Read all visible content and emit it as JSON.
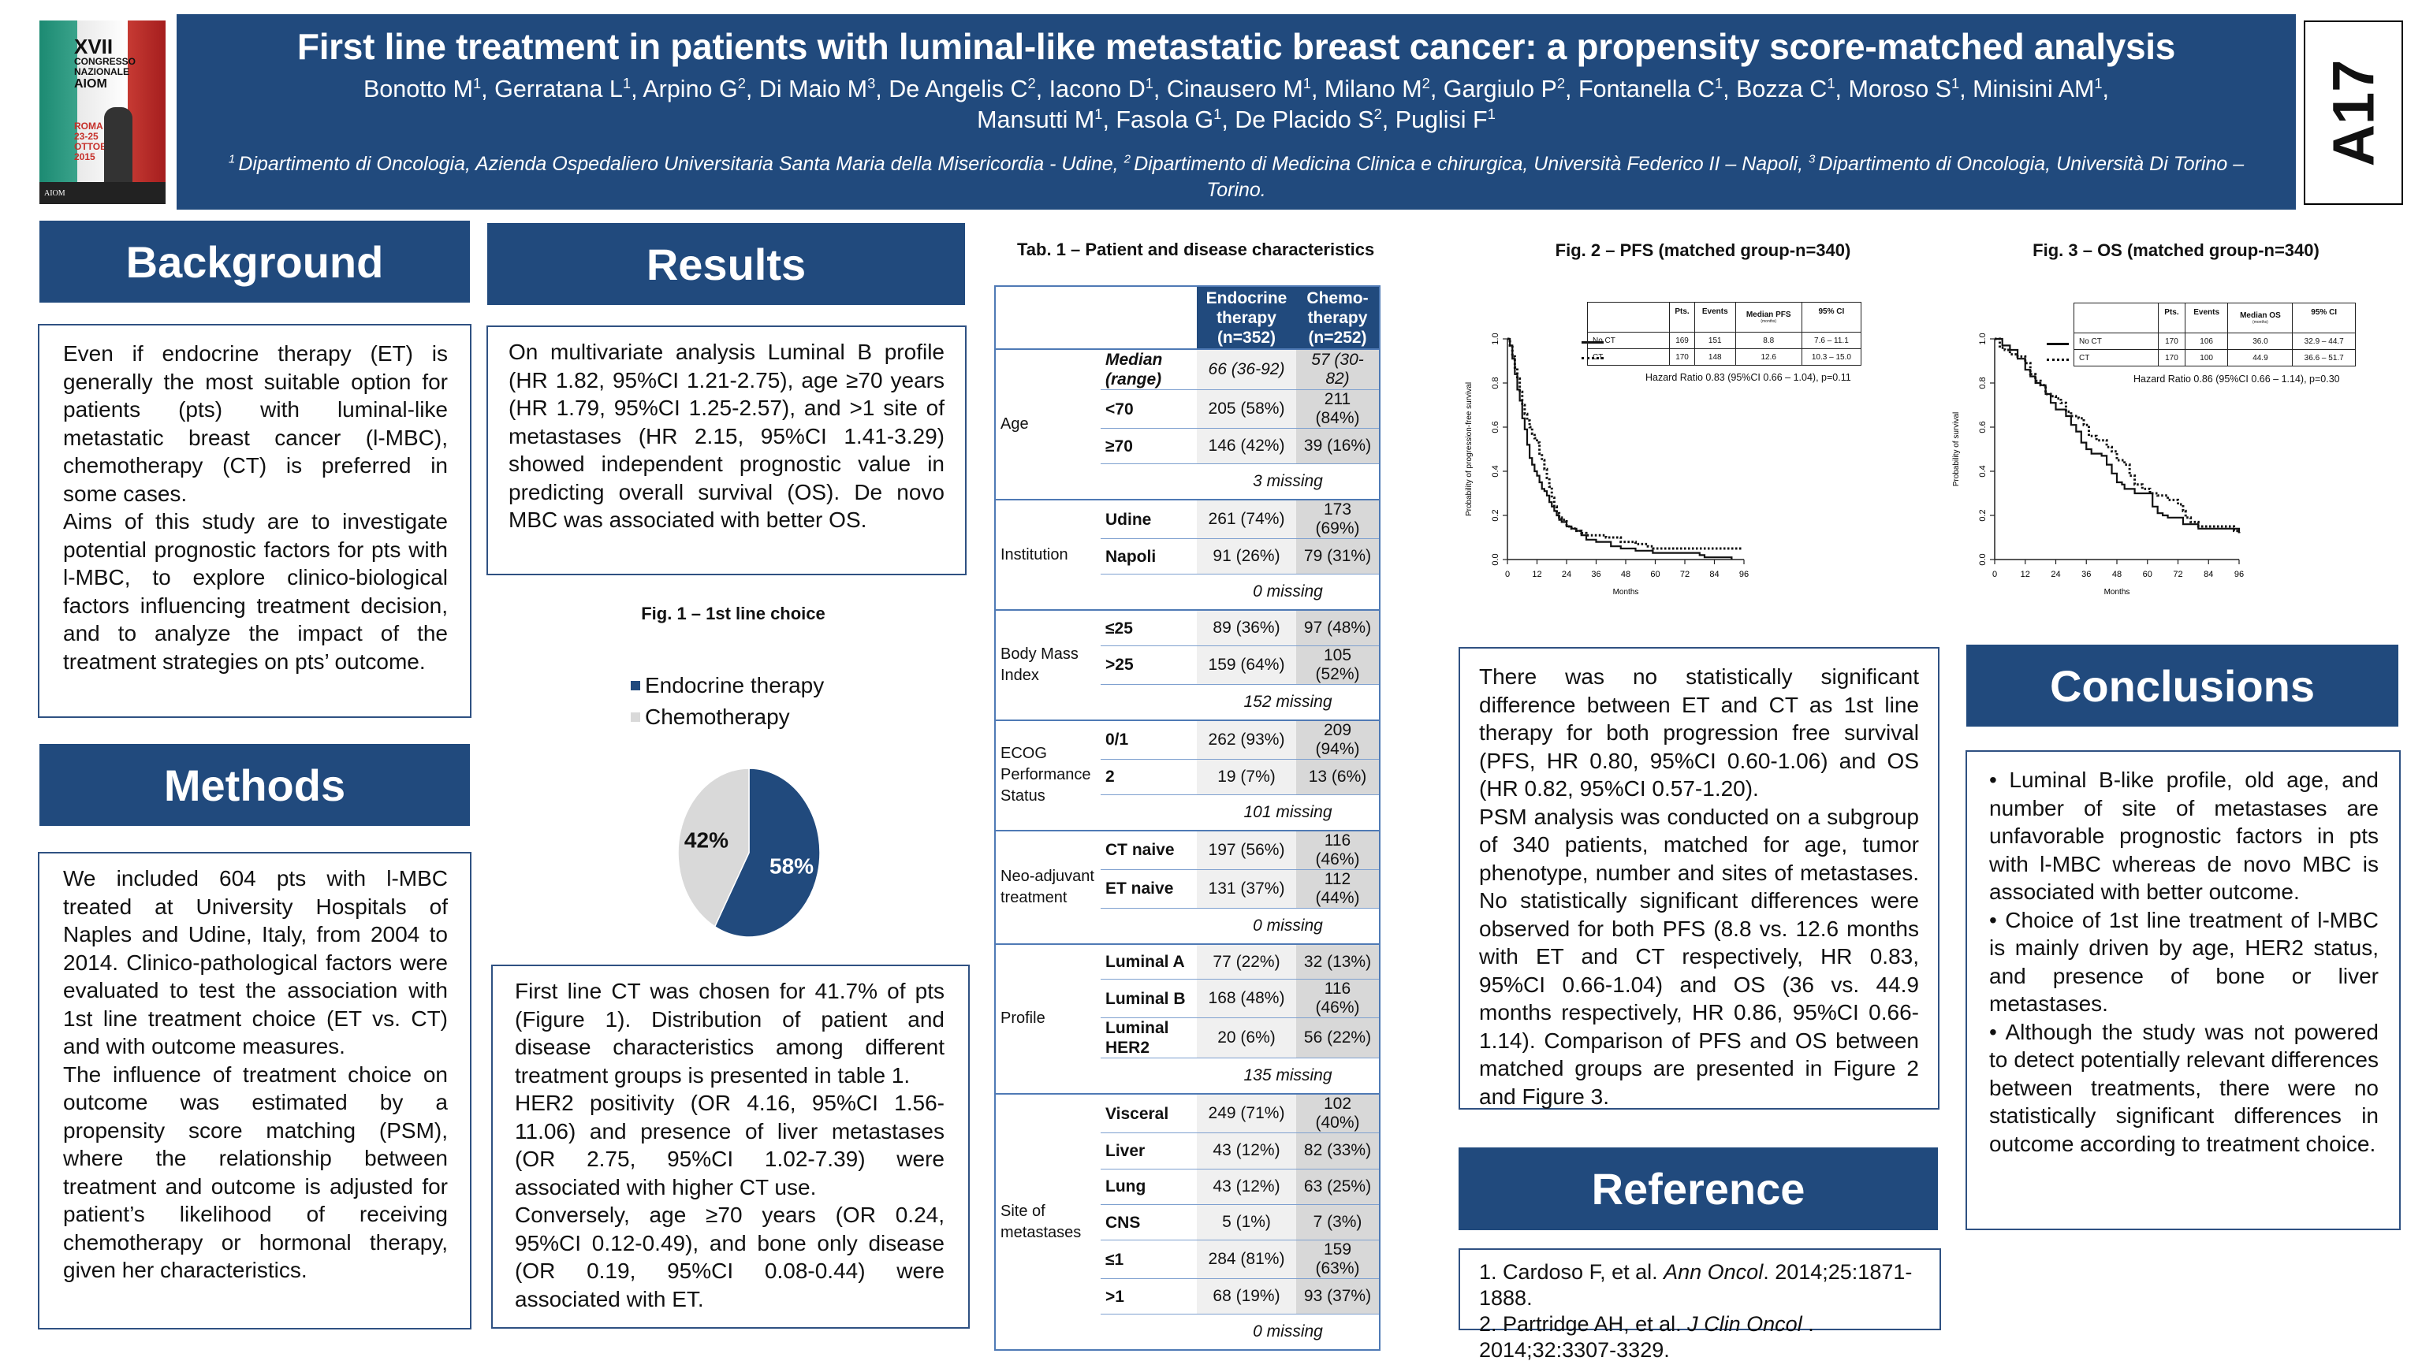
{
  "header": {
    "title": "First line treatment in patients with luminal-like metastatic breast cancer: a propensity score-matched analysis",
    "authors_line1": [
      {
        "name": "Bonotto M",
        "sup": "1"
      },
      {
        "name": "Gerratana L",
        "sup": "1"
      },
      {
        "name": "Arpino G",
        "sup": "2"
      },
      {
        "name": "Di Maio M",
        "sup": "3"
      },
      {
        "name": "De Angelis C",
        "sup": "2"
      },
      {
        "name": "Iacono D",
        "sup": "1"
      },
      {
        "name": "Cinausero M",
        "sup": "1"
      },
      {
        "name": "Milano M",
        "sup": "2"
      },
      {
        "name": "Gargiulo P",
        "sup": "2"
      },
      {
        "name": "Fontanella C",
        "sup": "1"
      },
      {
        "name": "Bozza C",
        "sup": "1"
      },
      {
        "name": "Moroso S",
        "sup": "1"
      },
      {
        "name": "Minisini AM",
        "sup": "1"
      }
    ],
    "authors_line2": [
      {
        "name": "Mansutti M",
        "sup": "1"
      },
      {
        "name": "Fasola G",
        "sup": "1"
      },
      {
        "name": "De Placido S",
        "sup": "2"
      },
      {
        "name": "Puglisi F",
        "sup": "1"
      }
    ],
    "affiliations": [
      {
        "sup": "1",
        "text": "Dipartimento di Oncologia, Azienda Ospedaliero Universitaria Santa Maria della Misericordia  - Udine, "
      },
      {
        "sup": "2",
        "text": "Dipartimento di Medicina Clinica e chirurgica, Università Federico II – Napoli, "
      },
      {
        "sup": "3",
        "text": "Dipartimento di Oncologia, Università Di Torino – Torino."
      }
    ],
    "abstract_code": "A17",
    "congress_logo": {
      "line1": "XVII",
      "line2": "CONGRESSO",
      "line3": "NAZIONALE",
      "line4": "AIOM",
      "city": "ROMA",
      "dates": "23-25",
      "month": "OTTOBRE",
      "year": "2015",
      "brand": "AIOM"
    }
  },
  "sections": {
    "background": {
      "heading": "Background",
      "paragraphs": [
        "Even if endocrine therapy (ET) is generally the most suitable option for patients (pts) with luminal-like metastatic breast cancer (l-MBC), chemotherapy (CT) is preferred in some cases.",
        "Aims of this study are to investigate potential prognostic factors for pts with l-MBC, to explore clinico-biological factors influencing treatment decision, and to analyze the impact of the treatment strategies on pts’ outcome."
      ]
    },
    "methods": {
      "heading": "Methods",
      "paragraphs": [
        "We included 604 pts with l-MBC treated at University Hospitals of Naples and Udine, Italy, from 2004 to 2014. Clinico-pathological factors were evaluated to test the association with 1st line treatment choice (ET vs. CT) and with outcome measures.",
        "The influence of treatment choice on outcome was estimated by a propensity score matching (PSM), where the relationship between treatment and outcome is adjusted for patient’s likelihood of receiving chemotherapy or hormonal therapy, given her characteristics."
      ]
    },
    "results": {
      "heading": "Results",
      "box1": "On multivariate analysis Luminal B profile (HR 1.82, 95%CI 1.21-2.75), age ≥70 years (HR 1.79, 95%CI 1.25-2.57), and >1 site of metastases (HR 2.15, 95%CI 1.41-3.29) showed independent prognostic value in predicting overall survival (OS). De novo MBC was associated with better OS.",
      "box2_paragraphs": [
        "First line CT was chosen for 41.7% of pts (Figure 1).  Distribution of patient and disease characteristics among different treatment groups is presented in table 1.",
        "HER2 positivity (OR 4.16, 95%CI 1.56-11.06) and presence of liver metastases (OR 2.75, 95%CI 1.02-7.39) were associated with higher CT use.",
        "Conversely, age ≥70 years (OR 0.24, 95%CI 0.12-0.49), and bone only disease (OR 0.19, 95%CI 0.08-0.44) were associated with ET."
      ],
      "box3_paragraphs": [
        "There was no statistically significant difference between ET and CT as 1st line therapy for both progression free survival (PFS, HR 0.80, 95%CI 0.60-1.06) and OS (HR 0.82, 95%CI 0.57-1.20).",
        "PSM analysis was conducted on a subgroup of 340 patients, matched for age, tumor phenotype, number and sites of metastases. No statistically significant differences were observed for both PFS (8.8 vs. 12.6 months with ET and CT respectively, HR 0.83, 95%CI 0.66-1.04) and OS (36 vs. 44.9 months respectively, HR 0.86, 95%CI 0.66-1.14). Comparison of PFS and OS between matched groups are presented in Figure 2 and Figure 3."
      ]
    },
    "conclusions": {
      "heading": "Conclusions",
      "bullets": [
        "Luminal B-like profile, old age, and number of site of metastases are unfavorable prognostic factors in pts with l-MBC whereas de novo MBC is associated with better outcome.",
        "Choice of 1st line treatment of l-MBC is mainly driven by age, HER2 status, and presence of bone or liver metastases.",
        "Although the study was not powered to detect potentially relevant differences between treatments, there were no statistically significant differences in outcome according to treatment choice."
      ]
    },
    "reference": {
      "heading": "Reference",
      "items": [
        {
          "prefix": "1. Cardoso F, et al.  ",
          "journal": "Ann Oncol",
          "suffix": ". 2014;25:1871-1888."
        },
        {
          "prefix": "2. Partridge AH, et al. ",
          "journal": "J Clin Oncol",
          "suffix": " . 2014;32:3307-3329."
        }
      ]
    }
  },
  "table1": {
    "title": "Tab. 1 – Patient and disease characteristics",
    "columns": [
      "Endocrine therapy (n=352)",
      "Chemo-therapy (n=252)"
    ],
    "column_lines": [
      [
        "Endocrine",
        "therapy",
        "(n=352)"
      ],
      [
        "Chemo-",
        "therapy",
        "(n=252)"
      ]
    ],
    "groups": [
      {
        "label": "Age",
        "rows": [
          {
            "sub": "Median (range)",
            "italic": true,
            "et": "66 (36-92)",
            "ct": "57 (30-82)"
          },
          {
            "sub": "<70",
            "et": "205 (58%)",
            "ct": "211 (84%)"
          },
          {
            "sub": "≥70",
            "et": "146 (42%)",
            "ct": "39 (16%)"
          }
        ],
        "missing": "3 missing"
      },
      {
        "label": "Institution",
        "rows": [
          {
            "sub": "Udine",
            "et": "261 (74%)",
            "ct": "173 (69%)"
          },
          {
            "sub": "Napoli",
            "et": "91 (26%)",
            "ct": "79 (31%)"
          }
        ],
        "missing": "0 missing"
      },
      {
        "label": "Body Mass Index",
        "rows": [
          {
            "sub": "≤25",
            "et": "89 (36%)",
            "ct": "97 (48%)"
          },
          {
            "sub": ">25",
            "et": "159 (64%)",
            "ct": "105 (52%)"
          }
        ],
        "missing": "152 missing"
      },
      {
        "label": "ECOG Performance Status",
        "rows": [
          {
            "sub": "0/1",
            "et": "262 (93%)",
            "ct": "209 (94%)"
          },
          {
            "sub": "2",
            "et": "19 (7%)",
            "ct": "13 (6%)"
          }
        ],
        "missing": "101 missing"
      },
      {
        "label": "Neo-adjuvant treatment",
        "rows": [
          {
            "sub": "CT naive",
            "et": "197 (56%)",
            "ct": "116 (46%)"
          },
          {
            "sub": "ET naive",
            "et": "131 (37%)",
            "ct": "112 (44%)"
          }
        ],
        "missing": "0 missing"
      },
      {
        "label": "Profile",
        "rows": [
          {
            "sub": "Luminal  A",
            "et": "77 (22%)",
            "ct": "32 (13%)"
          },
          {
            "sub": "Luminal  B",
            "et": "168 (48%)",
            "ct": "116 (46%)"
          },
          {
            "sub": "Luminal HER2",
            "et": "20 (6%)",
            "ct": "56 (22%)"
          }
        ],
        "missing": "135 missing"
      },
      {
        "label": "Site of metastases",
        "rows": [
          {
            "sub": "Visceral",
            "et": "249 (71%)",
            "ct": "102 (40%)"
          },
          {
            "sub": "Liver",
            "et": "43 (12%)",
            "ct": "82 (33%)"
          },
          {
            "sub": "Lung",
            "et": "43 (12%)",
            "ct": "63 (25%)"
          },
          {
            "sub": "CNS",
            "et": "5 (1%)",
            "ct": "7 (3%)"
          },
          {
            "sub": "≤1",
            "et": "284 (81%)",
            "ct": "159 (63%)"
          },
          {
            "sub": ">1",
            "et": "68 (19%)",
            "ct": "93 (37%)"
          }
        ],
        "missing": "0 missing"
      }
    ]
  },
  "colors": {
    "brand_blue": "#214a7d",
    "pie_endocrine": "#214a7d",
    "pie_chemo": "#d9d9d9",
    "table_col1_bg": "#f0f0f0",
    "table_col2_bg": "#d8d8d8"
  },
  "chart_data": [
    {
      "id": "fig1",
      "type": "pie",
      "title": "Fig. 1 – 1st line choice",
      "categories": [
        "Endocrine therapy",
        "Chemotherapy"
      ],
      "values": [
        58,
        42
      ],
      "labels": [
        "58%",
        "42%"
      ],
      "legend": "top"
    },
    {
      "id": "fig2",
      "type": "line",
      "title": "Fig. 2 – PFS (matched group-n=340)",
      "xlabel": "Months",
      "ylabel": "Probability of progression-free survival",
      "xlim": [
        0,
        96
      ],
      "ylim": [
        0,
        1
      ],
      "xticks": [
        0,
        12,
        24,
        36,
        48,
        60,
        72,
        84,
        96
      ],
      "yticks": [
        "0.0",
        "0.2",
        "0.4",
        "0.6",
        "0.8",
        "1.0"
      ],
      "legend": "top-right",
      "summary_table": {
        "headers": [
          "",
          "Pts.",
          "Events",
          "Median PFS",
          "95% CI"
        ],
        "header_note": "(months)",
        "rows": [
          [
            "No CT",
            "169",
            "151",
            "8.8",
            "7.6 – 11.1"
          ],
          [
            "CT",
            "170",
            "148",
            "12.6",
            "10.3 – 15.0"
          ]
        ]
      },
      "annotation": "Hazard Ratio 0.83 (95%CI 0.66 – 1.04), p=0.11",
      "series": [
        {
          "name": "No CT",
          "style": "solid",
          "x": [
            0,
            1,
            2,
            3,
            4,
            5,
            6,
            7,
            8,
            9,
            10,
            11,
            12,
            13,
            14,
            15,
            16,
            17,
            18,
            19,
            20,
            21,
            22,
            24,
            26,
            28,
            30,
            32,
            36,
            42,
            46,
            52,
            59,
            64,
            78,
            80,
            91
          ],
          "y": [
            1.0,
            0.97,
            0.91,
            0.84,
            0.77,
            0.72,
            0.64,
            0.59,
            0.52,
            0.46,
            0.43,
            0.4,
            0.38,
            0.35,
            0.32,
            0.31,
            0.29,
            0.26,
            0.24,
            0.22,
            0.2,
            0.18,
            0.17,
            0.15,
            0.14,
            0.13,
            0.11,
            0.09,
            0.08,
            0.06,
            0.05,
            0.04,
            0.03,
            0.03,
            0.02,
            0.01,
            0.0
          ]
        },
        {
          "name": "CT",
          "style": "dotted",
          "x": [
            0,
            1,
            2,
            3,
            4,
            5,
            6,
            7,
            8,
            9,
            10,
            11,
            12,
            13,
            14,
            15,
            16,
            17,
            18,
            19,
            20,
            21,
            22,
            24,
            26,
            28,
            30,
            32,
            36,
            40,
            46,
            52,
            57,
            59,
            64,
            80,
            95
          ],
          "y": [
            1.0,
            0.97,
            0.92,
            0.87,
            0.82,
            0.76,
            0.7,
            0.66,
            0.63,
            0.6,
            0.57,
            0.55,
            0.53,
            0.48,
            0.45,
            0.41,
            0.37,
            0.33,
            0.28,
            0.24,
            0.21,
            0.19,
            0.18,
            0.15,
            0.14,
            0.13,
            0.12,
            0.11,
            0.11,
            0.1,
            0.08,
            0.07,
            0.06,
            0.05,
            0.05,
            0.05,
            0.05
          ]
        }
      ]
    },
    {
      "id": "fig3",
      "type": "line",
      "title": "Fig. 3 – OS (matched group-n=340)",
      "xlabel": "Months",
      "ylabel": "Probability of survival",
      "xlim": [
        0,
        96
      ],
      "ylim": [
        0,
        1
      ],
      "xticks": [
        0,
        12,
        24,
        36,
        48,
        60,
        72,
        84,
        96
      ],
      "yticks": [
        "0.0",
        "0.2",
        "0.4",
        "0.6",
        "0.8",
        "1.0"
      ],
      "legend": "top-right",
      "summary_table": {
        "headers": [
          "",
          "Pts.",
          "Events",
          "Median OS",
          "95% CI"
        ],
        "header_note": "(months)",
        "rows": [
          [
            "No CT",
            "170",
            "106",
            "36.0",
            "32.9 – 44.7"
          ],
          [
            "CT",
            "170",
            "100",
            "44.9",
            "36.6 – 51.7"
          ]
        ]
      },
      "annotation": "Hazard Ratio 0.86 (95%CI 0.66 – 1.14), p=0.30",
      "series": [
        {
          "name": "No CT",
          "style": "solid",
          "x": [
            0,
            3,
            6,
            9,
            12,
            14,
            16,
            18,
            20,
            22,
            24,
            26,
            28,
            30,
            32,
            34,
            36,
            38,
            42,
            44,
            46,
            48,
            50,
            51,
            55,
            60,
            62,
            64,
            66,
            68,
            72,
            74,
            80,
            90,
            94,
            96
          ],
          "y": [
            1.0,
            0.97,
            0.95,
            0.91,
            0.86,
            0.83,
            0.8,
            0.79,
            0.75,
            0.71,
            0.68,
            0.68,
            0.65,
            0.61,
            0.58,
            0.53,
            0.5,
            0.48,
            0.47,
            0.43,
            0.39,
            0.35,
            0.34,
            0.32,
            0.3,
            0.3,
            0.24,
            0.21,
            0.2,
            0.19,
            0.19,
            0.16,
            0.14,
            0.14,
            0.14,
            0.12
          ]
        },
        {
          "name": "CT",
          "style": "dotted",
          "x": [
            0,
            2,
            4,
            6,
            9,
            12,
            14,
            16,
            18,
            20,
            22,
            24,
            26,
            28,
            30,
            33,
            35,
            37,
            40,
            44,
            46,
            48,
            51,
            53,
            55,
            58,
            61,
            64,
            68,
            72,
            74,
            75,
            77,
            80,
            90,
            94,
            96
          ],
          "y": [
            1.0,
            0.96,
            0.95,
            0.93,
            0.92,
            0.89,
            0.84,
            0.81,
            0.79,
            0.75,
            0.74,
            0.73,
            0.71,
            0.67,
            0.65,
            0.64,
            0.61,
            0.56,
            0.54,
            0.51,
            0.49,
            0.45,
            0.43,
            0.38,
            0.34,
            0.32,
            0.3,
            0.29,
            0.27,
            0.25,
            0.22,
            0.19,
            0.17,
            0.15,
            0.15,
            0.13,
            0.12
          ]
        }
      ]
    }
  ]
}
